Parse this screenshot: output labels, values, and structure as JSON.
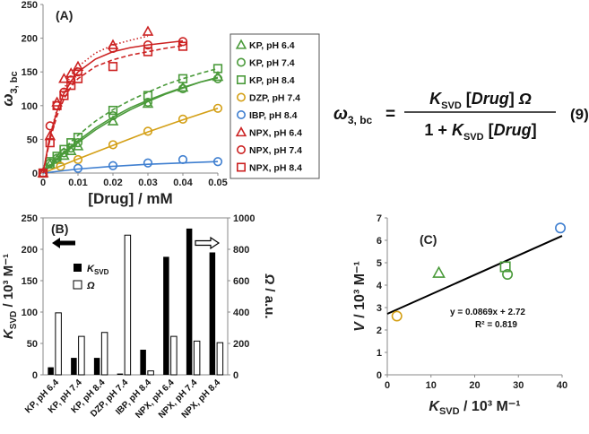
{
  "chart_data": [
    {
      "panel": "A",
      "type": "scatter",
      "title": "(A)",
      "xlabel": "[Drug] / mM",
      "ylabel": "ω3, bc",
      "xlim": [
        0,
        0.05
      ],
      "ylim": [
        0,
        250
      ],
      "xticks": [
        "0",
        "0.01",
        "0.02",
        "0.03",
        "0.04",
        "0.05"
      ],
      "yticks": [
        "0",
        "50",
        "100",
        "150",
        "200",
        "250"
      ],
      "series": [
        {
          "name": "KP, pH 6.4",
          "color": "#4a9a3a",
          "marker": "triangle",
          "line": "solid",
          "x": [
            0,
            0.002,
            0.004,
            0.006,
            0.008,
            0.01,
            0.02,
            0.03,
            0.04,
            0.05
          ],
          "y": [
            0,
            13,
            20,
            26,
            33,
            40,
            77,
            103,
            127,
            143
          ],
          "fit_x": [
            0,
            0.005,
            0.01,
            0.015,
            0.02,
            0.025,
            0.03,
            0.035,
            0.04,
            0.045,
            0.05
          ],
          "fit_y": [
            0,
            25,
            45,
            64,
            80,
            94,
            106,
            117,
            126,
            135,
            142
          ]
        },
        {
          "name": "KP, pH 7.4",
          "color": "#4a9a3a",
          "marker": "circle",
          "line": "solid",
          "x": [
            0,
            0.002,
            0.004,
            0.006,
            0.008,
            0.01,
            0.02,
            0.03,
            0.04,
            0.05
          ],
          "y": [
            0,
            15,
            22,
            30,
            37,
            45,
            85,
            105,
            125,
            140
          ],
          "fit_x": [
            0,
            0.005,
            0.01,
            0.015,
            0.02,
            0.025,
            0.03,
            0.035,
            0.04,
            0.045,
            0.05
          ],
          "fit_y": [
            0,
            27,
            48,
            67,
            83,
            97,
            108,
            118,
            127,
            135,
            141
          ]
        },
        {
          "name": "KP, pH 8.4",
          "color": "#4a9a3a",
          "marker": "square",
          "line": "dashed",
          "x": [
            0,
            0.002,
            0.004,
            0.006,
            0.008,
            0.01,
            0.02,
            0.03,
            0.04,
            0.05
          ],
          "y": [
            0,
            17,
            25,
            35,
            45,
            53,
            93,
            115,
            140,
            155
          ],
          "fit_x": [
            0,
            0.005,
            0.01,
            0.015,
            0.02,
            0.025,
            0.03,
            0.035,
            0.04,
            0.045,
            0.05
          ],
          "fit_y": [
            0,
            32,
            56,
            77,
            94,
            108,
            120,
            131,
            140,
            148,
            155
          ]
        },
        {
          "name": "DZP, pH 7.4",
          "color": "#d4a017",
          "marker": "circle",
          "line": "solid",
          "x": [
            0,
            0.005,
            0.01,
            0.02,
            0.03,
            0.04,
            0.05
          ],
          "y": [
            0,
            10,
            20,
            42,
            62,
            80,
            96
          ],
          "fit_x": [
            0,
            0.01,
            0.02,
            0.03,
            0.04,
            0.05
          ],
          "fit_y": [
            0,
            21,
            41,
            61,
            79,
            96
          ]
        },
        {
          "name": "IBP, pH 8.4",
          "color": "#3f7fd0",
          "marker": "circle",
          "line": "solid",
          "x": [
            0,
            0.01,
            0.02,
            0.03,
            0.04,
            0.05
          ],
          "y": [
            0,
            7,
            11,
            15,
            20,
            17
          ],
          "fit_x": [
            0,
            0.01,
            0.02,
            0.03,
            0.04,
            0.05
          ],
          "fit_y": [
            0,
            6,
            10,
            13,
            15,
            17
          ]
        },
        {
          "name": "NPX, pH 6.4",
          "color": "#cc2222",
          "marker": "triangle",
          "line": "dotted",
          "x": [
            0,
            0.002,
            0.004,
            0.006,
            0.008,
            0.01,
            0.02,
            0.03
          ],
          "y": [
            0,
            55,
            105,
            140,
            148,
            158,
            190,
            210
          ],
          "fit_x": [
            0,
            0.002,
            0.004,
            0.006,
            0.008,
            0.01,
            0.015,
            0.02,
            0.025,
            0.03
          ],
          "fit_y": [
            0,
            55,
            95,
            125,
            145,
            158,
            178,
            190,
            197,
            203
          ]
        },
        {
          "name": "NPX, pH 7.4",
          "color": "#cc2222",
          "marker": "circle",
          "line": "solid",
          "x": [
            0,
            0.002,
            0.004,
            0.006,
            0.008,
            0.01,
            0.02,
            0.03,
            0.04
          ],
          "y": [
            0,
            70,
            100,
            120,
            138,
            150,
            185,
            190,
            195
          ],
          "fit_x": [
            0,
            0.002,
            0.004,
            0.006,
            0.008,
            0.01,
            0.015,
            0.02,
            0.025,
            0.03,
            0.035,
            0.04
          ],
          "fit_y": [
            0,
            55,
            92,
            118,
            136,
            150,
            169,
            180,
            186,
            190,
            193,
            196
          ]
        },
        {
          "name": "NPX, pH 8.4",
          "color": "#cc2222",
          "marker": "square",
          "line": "dashed",
          "x": [
            0,
            0.002,
            0.004,
            0.006,
            0.008,
            0.01,
            0.02,
            0.03,
            0.04
          ],
          "y": [
            0,
            45,
            100,
            115,
            130,
            140,
            158,
            180,
            188
          ],
          "fit_x": [
            0,
            0.002,
            0.004,
            0.006,
            0.008,
            0.01,
            0.015,
            0.02,
            0.025,
            0.03,
            0.035,
            0.04
          ],
          "fit_y": [
            0,
            50,
            85,
            110,
            128,
            140,
            158,
            168,
            175,
            180,
            185,
            189
          ]
        }
      ]
    },
    {
      "panel": "B",
      "type": "bar",
      "title": "(B)",
      "categories": [
        "KP, pH 6.4",
        "KP, pH 7.4",
        "KP, pH 8.4",
        "DZP, pH 7.4",
        "IBP, pH 8.4",
        "NPX, pH 6.4",
        "NPX, pH 7.4",
        "NPX, pH 8.4"
      ],
      "ylabel_left": "KSVD / 10³ M⁻¹",
      "ylabel_right": "Ω / a.u.",
      "ylim_left": [
        0,
        250
      ],
      "ylim_right": [
        0,
        1000
      ],
      "yticks_left": [
        "0",
        "50",
        "100",
        "150",
        "200",
        "250"
      ],
      "yticks_right": [
        "0",
        "200",
        "400",
        "600",
        "800",
        "1000"
      ],
      "series": [
        {
          "name": "KSVD",
          "axis": "left",
          "color": "#000000",
          "values": [
            12,
            27,
            27,
            2,
            40,
            188,
            233,
            195
          ]
        },
        {
          "name": "Ω",
          "axis": "right",
          "color": "#ffffff",
          "values": [
            395,
            245,
            270,
            890,
            25,
            245,
            215,
            205
          ]
        }
      ]
    },
    {
      "panel": "C",
      "type": "scatter",
      "title": "(C)",
      "xlabel": "KSVD / 10³ M⁻¹",
      "ylabel": "V / 10³ M⁻¹",
      "xlim": [
        0,
        40
      ],
      "ylim": [
        0,
        7
      ],
      "xticks": [
        "0",
        "10",
        "20",
        "30",
        "40"
      ],
      "yticks": [
        "0",
        "1",
        "2",
        "3",
        "4",
        "5",
        "6",
        "7"
      ],
      "points": [
        {
          "name": "DZP, pH 7.4",
          "x": 2.2,
          "y": 2.62,
          "marker": "circle",
          "color": "#d4a017"
        },
        {
          "name": "KP, pH 6.4",
          "x": 11.8,
          "y": 4.55,
          "marker": "triangle",
          "color": "#4a9a3a"
        },
        {
          "name": "KP, pH 8.4",
          "x": 27.0,
          "y": 4.82,
          "marker": "square",
          "color": "#4a9a3a"
        },
        {
          "name": "KP, pH 7.4",
          "x": 27.5,
          "y": 4.48,
          "marker": "circle",
          "color": "#4a9a3a"
        },
        {
          "name": "IBP, pH 8.4",
          "x": 39.6,
          "y": 6.55,
          "marker": "circle",
          "color": "#3f7fd0"
        }
      ],
      "fit": {
        "slope": 0.0869,
        "intercept": 2.72,
        "equation": "y = 0.0869x + 2.72",
        "r2": "R² = 0.819"
      }
    }
  ],
  "equation": {
    "lhs": "ω3, bc",
    "numerator": "KSVD [Drug] Ω",
    "denominator": "1 + KSVD [Drug]",
    "number": "(9)"
  }
}
